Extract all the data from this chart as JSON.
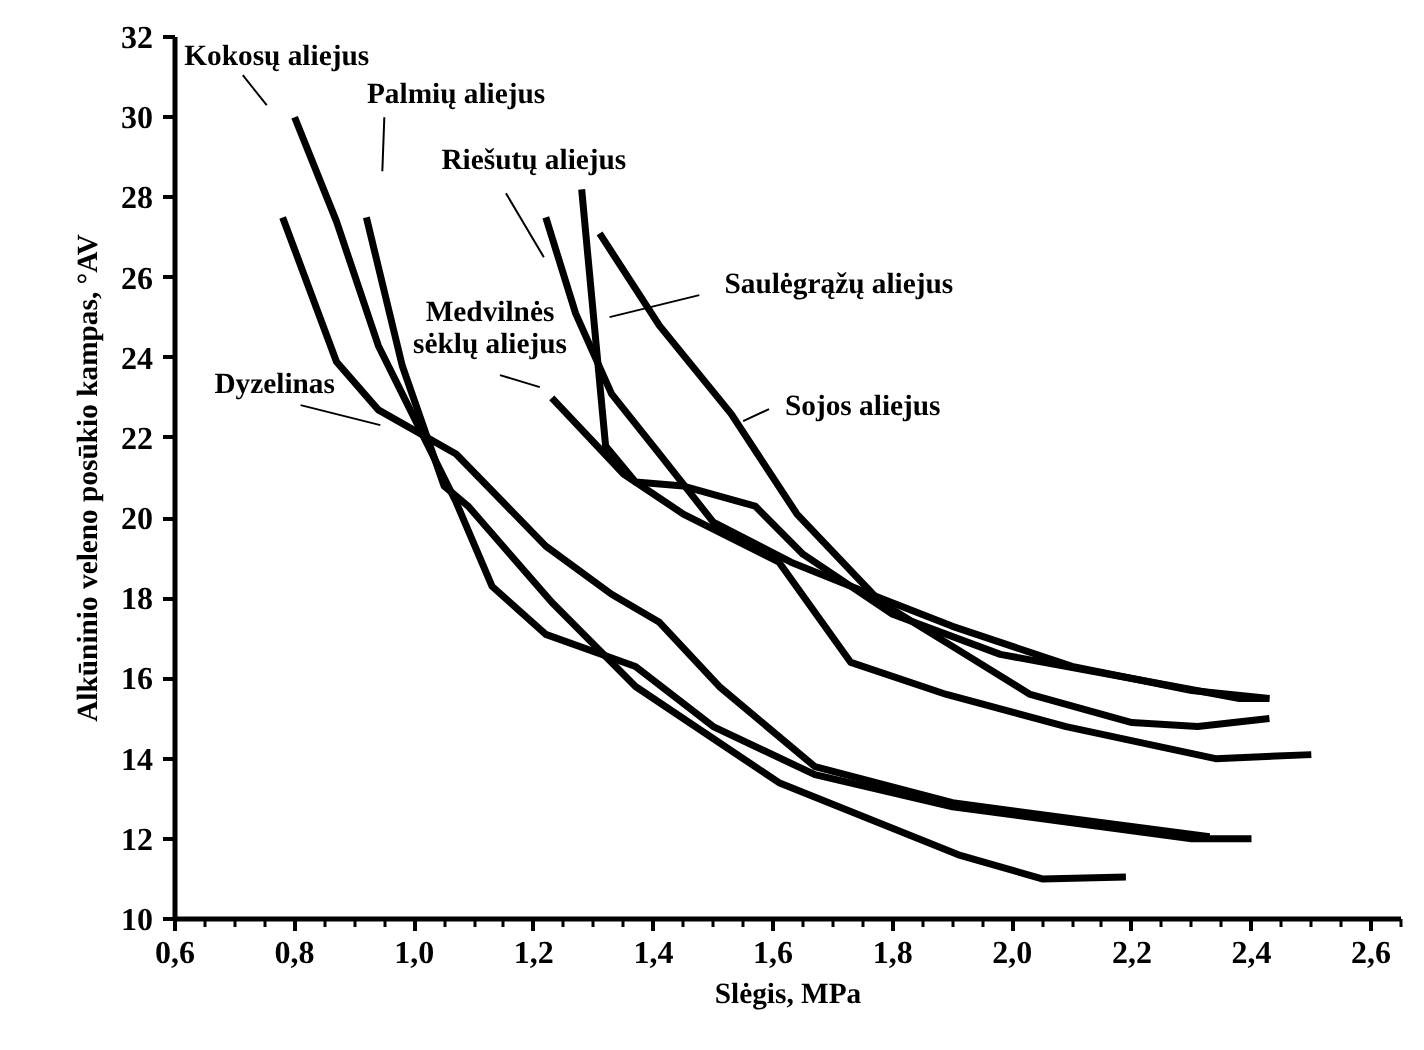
{
  "chart_data": {
    "type": "line",
    "xlabel": "Slėgis, MPa",
    "ylabel": "Alkūninio veleno posūkio kampas, °AV",
    "xlim": [
      0.6,
      2.65
    ],
    "ylim": [
      10,
      32
    ],
    "xticks": [
      {
        "value": 0.6,
        "label": "0,6"
      },
      {
        "value": 0.8,
        "label": "0,8"
      },
      {
        "value": 1.0,
        "label": "1,0"
      },
      {
        "value": 1.2,
        "label": "1,2"
      },
      {
        "value": 1.4,
        "label": "1,4"
      },
      {
        "value": 1.6,
        "label": "1,6"
      },
      {
        "value": 1.8,
        "label": "1,8"
      },
      {
        "value": 2.0,
        "label": "2,0"
      },
      {
        "value": 2.2,
        "label": "2,2"
      },
      {
        "value": 2.4,
        "label": "2,4"
      },
      {
        "value": 2.6,
        "label": "2,6"
      }
    ],
    "yticks": [
      10,
      12,
      14,
      16,
      18,
      20,
      22,
      24,
      26,
      28,
      30,
      32
    ],
    "grid": false,
    "marker": "none",
    "line_style": "solid",
    "series": [
      {
        "color": "#000000",
        "x": [
          0.8,
          0.87,
          0.94,
          1.0,
          1.07,
          1.13,
          1.22,
          1.37,
          1.5,
          1.67,
          1.9,
          2.1,
          2.3,
          2.4
        ],
        "values": [
          30.0,
          27.4,
          24.3,
          22.5,
          20.4,
          18.3,
          17.1,
          16.3,
          14.8,
          13.6,
          12.8,
          12.4,
          12.0,
          12.0
        ]
      },
      {
        "color": "#000000",
        "x": [
          0.92,
          0.98,
          1.05,
          1.09,
          1.23,
          1.37,
          1.61,
          1.91,
          2.05,
          2.19
        ],
        "values": [
          27.5,
          23.8,
          20.8,
          20.3,
          17.9,
          15.8,
          13.4,
          11.6,
          11.0,
          11.05
        ]
      },
      {
        "color": "#000000",
        "x": [
          0.78,
          0.87,
          0.94,
          1.07,
          1.22,
          1.33,
          1.41,
          1.51,
          1.67,
          1.9,
          2.1,
          2.33
        ],
        "values": [
          27.5,
          23.9,
          22.7,
          21.6,
          19.3,
          18.1,
          17.4,
          15.8,
          13.8,
          12.9,
          12.5,
          12.05
        ]
      },
      {
        "color": "#000000",
        "x": [
          1.22,
          1.27,
          1.33,
          1.41,
          1.5,
          1.63,
          1.78,
          1.9,
          2.1,
          2.3,
          2.43
        ],
        "values": [
          27.5,
          25.1,
          23.1,
          21.6,
          19.9,
          18.9,
          18.0,
          17.3,
          16.3,
          15.7,
          15.5
        ]
      },
      {
        "color": "#000000",
        "x": [
          1.28,
          1.32,
          1.37,
          1.45,
          1.57,
          1.65,
          1.8,
          1.98,
          2.2,
          2.38,
          2.43
        ],
        "values": [
          28.2,
          21.8,
          20.9,
          20.8,
          20.3,
          19.1,
          17.6,
          16.6,
          16.0,
          15.5,
          15.5
        ]
      },
      {
        "color": "#000000",
        "x": [
          1.31,
          1.41,
          1.53,
          1.64,
          1.78,
          1.9,
          2.03,
          2.2,
          2.31,
          2.43
        ],
        "values": [
          27.1,
          24.8,
          22.6,
          20.1,
          17.9,
          16.8,
          15.6,
          14.9,
          14.8,
          15.0
        ]
      },
      {
        "color": "#000000",
        "x": [
          1.23,
          1.35,
          1.45,
          1.61,
          1.73,
          1.89,
          2.09,
          2.34,
          2.5
        ],
        "values": [
          23.0,
          21.1,
          20.1,
          18.9,
          16.4,
          15.6,
          14.8,
          14.0,
          14.1
        ]
      }
    ],
    "annotations": [
      "Kokosų aliejus",
      "Palmių aliejus",
      "Riešutų aliejus",
      "Saulėgrąžų aliejus",
      "Sojos aliejus",
      "Medvilnės\nsėklų aliejus",
      "Dyzelinas"
    ]
  }
}
